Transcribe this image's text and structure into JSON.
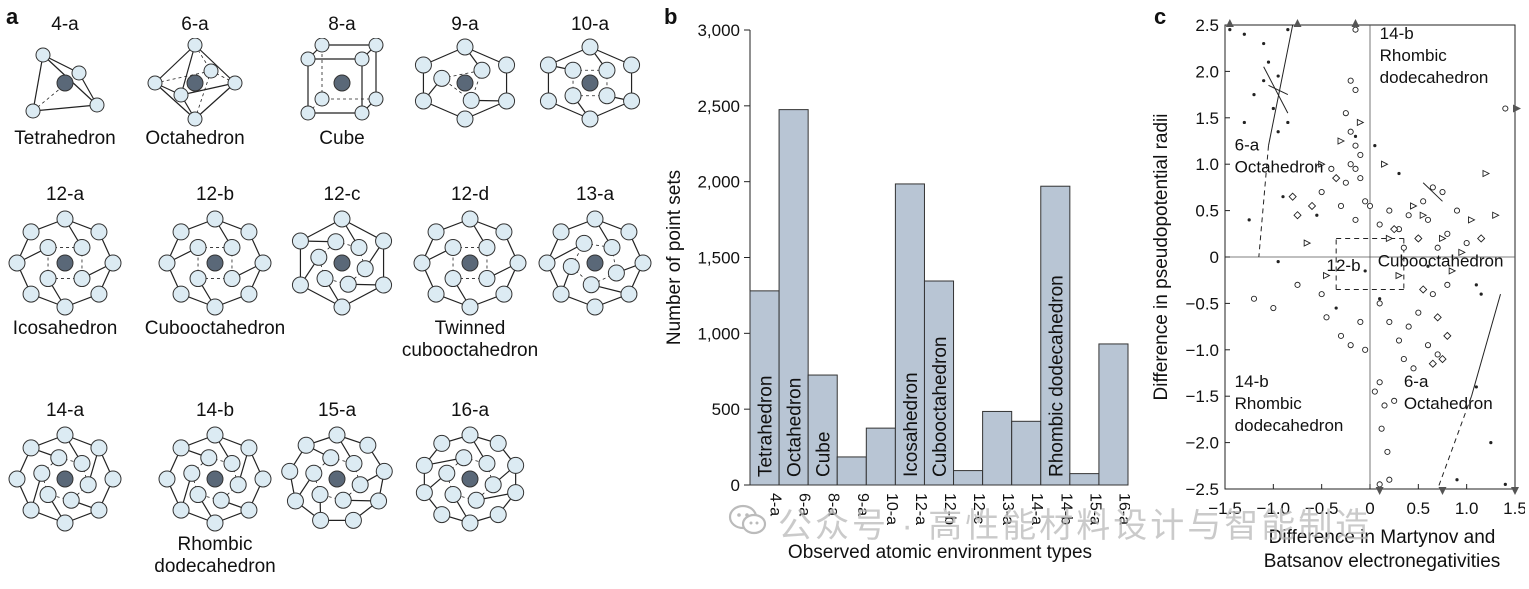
{
  "panel_a": {
    "letter": "a",
    "polyhedra": [
      {
        "code": "4-a",
        "label": "Tetrahedron",
        "shape": "tetra"
      },
      {
        "code": "6-a",
        "label": "Octahedron",
        "shape": "octa"
      },
      {
        "code": "8-a",
        "label": "Cube",
        "shape": "cube"
      },
      {
        "code": "9-a",
        "label": "",
        "shape": "cluster9"
      },
      {
        "code": "10-a",
        "label": "",
        "shape": "cluster10"
      },
      {
        "code": "12-a",
        "label": "Icosahedron",
        "shape": "cluster12"
      },
      {
        "code": "12-b",
        "label": "Cubooctahedron",
        "shape": "cubocta"
      },
      {
        "code": "12-c",
        "label": "",
        "shape": "hexprism"
      },
      {
        "code": "12-d",
        "label": "Twinned\ncubooctahedron",
        "shape": "twinned"
      },
      {
        "code": "13-a",
        "label": "",
        "shape": "cluster13"
      },
      {
        "code": "14-a",
        "label": "",
        "shape": "cluster14a"
      },
      {
        "code": "14-b",
        "label": "Rhombic\ndodecahedron",
        "shape": "rhombic"
      },
      {
        "code": "15-a",
        "label": "",
        "shape": "cluster15"
      },
      {
        "code": "16-a",
        "label": "",
        "shape": "cluster16"
      }
    ]
  },
  "panel_b": {
    "letter": "b"
  },
  "panel_c": {
    "letter": "c"
  },
  "watermark": "公众号 · 高性能材料设计与智能制造",
  "colors": {
    "bar_fill": "#b8c5d4",
    "atom_fill": "#dcebf3",
    "center_atom": "#5a6878"
  },
  "chart_data": [
    {
      "type": "bar",
      "title": "",
      "xlabel": "Observed atomic environment types",
      "ylabel": "Number of point sets",
      "ylim": [
        0,
        3000
      ],
      "yticks": [
        0,
        500,
        1000,
        1500,
        2000,
        2500,
        3000
      ],
      "ytick_labels": [
        "0",
        "500",
        "1,000",
        "1,500",
        "2,000",
        "2,500",
        "3,000"
      ],
      "categories": [
        "4-a",
        "6-a",
        "8-a",
        "9-a",
        "10-a",
        "12-a",
        "12-b",
        "12-c",
        "13-a",
        "14-a",
        "14-b",
        "15-a",
        "16-a"
      ],
      "values": [
        1280,
        2475,
        725,
        185,
        375,
        1985,
        1345,
        95,
        485,
        420,
        1970,
        75,
        930
      ],
      "bar_labels": [
        "Tetrahedron",
        "Octahedron",
        "Cube",
        "",
        "",
        "Icosahedron",
        "Cubooctahedron",
        "",
        "",
        "",
        "Rhombic dodecahedron",
        "",
        ""
      ]
    },
    {
      "type": "scatter",
      "title": "",
      "xlabel": "Difference in Martynov and\nBatsanov electronegativities",
      "ylabel": "Difference in pseudopotential radii",
      "xlim": [
        -1.5,
        1.5
      ],
      "ylim": [
        -2.5,
        2.5
      ],
      "xticks": [
        -1.5,
        -1.0,
        -0.5,
        0,
        0.5,
        1.0,
        1.5
      ],
      "xtick_labels": [
        "−1.5",
        "−1.0",
        "−0.5",
        "0",
        "0.5",
        "1.0",
        "1.5"
      ],
      "yticks": [
        -2.5,
        -2.0,
        -1.5,
        -1.0,
        -0.5,
        0,
        0.5,
        1.0,
        1.5,
        2.0,
        2.5
      ],
      "ytick_labels": [
        "−2.5",
        "−2.0",
        "−1.5",
        "−1.0",
        "−0.5",
        "0",
        "0.5",
        "1.0",
        "1.5",
        "2.0",
        "2.5"
      ],
      "region_labels": [
        {
          "text": "14-b\nRhombic\ndodecahedron",
          "x": 0.1,
          "y": 2.35
        },
        {
          "text": "6-a\nOctahedron",
          "x": -1.4,
          "y": 1.15
        },
        {
          "text": "Cubooctahedron",
          "x": 0.08,
          "y": -0.1
        },
        {
          "text": "12-b",
          "x": -0.45,
          "y": -0.15
        },
        {
          "text": "14-b\nRhombic\ndodecahedron",
          "x": -1.4,
          "y": -1.4
        },
        {
          "text": "6-a\nOctahedron",
          "x": 0.35,
          "y": -1.4
        }
      ],
      "series": [
        {
          "marker": "dot",
          "points": [
            [
              -1.45,
              2.45
            ],
            [
              -1.3,
              2.4
            ],
            [
              -1.1,
              2.3
            ],
            [
              -0.85,
              2.45
            ],
            [
              -0.75,
              2.5
            ],
            [
              -1.05,
              2.1
            ],
            [
              -1.2,
              1.75
            ],
            [
              -1.3,
              1.45
            ],
            [
              -0.95,
              1.95
            ],
            [
              -0.85,
              1.45
            ],
            [
              -1.1,
              1.9
            ],
            [
              -1.0,
              1.6
            ],
            [
              -0.95,
              1.35
            ],
            [
              -1.25,
              0.4
            ],
            [
              -0.9,
              0.65
            ],
            [
              -0.15,
              1.3
            ],
            [
              0.05,
              1.2
            ],
            [
              0.3,
              0.9
            ],
            [
              -0.55,
              0.45
            ],
            [
              0.6,
              -0.1
            ],
            [
              -0.95,
              -0.05
            ],
            [
              -0.35,
              -0.55
            ],
            [
              1.1,
              -0.3
            ],
            [
              1.15,
              -0.4
            ],
            [
              1.1,
              -1.4
            ],
            [
              1.25,
              -2.0
            ],
            [
              0.9,
              -2.4
            ],
            [
              1.4,
              -2.45
            ],
            [
              -0.05,
              -0.15
            ],
            [
              0.1,
              -0.45
            ]
          ]
        },
        {
          "marker": "circle",
          "points": [
            [
              -0.15,
              2.45
            ],
            [
              -0.2,
              1.9
            ],
            [
              -0.15,
              1.8
            ],
            [
              -0.25,
              1.55
            ],
            [
              -0.2,
              1.35
            ],
            [
              -0.15,
              1.2
            ],
            [
              -0.1,
              1.1
            ],
            [
              -0.2,
              1.0
            ],
            [
              -0.15,
              0.95
            ],
            [
              -0.1,
              0.85
            ],
            [
              -0.25,
              0.8
            ],
            [
              -0.05,
              0.6
            ],
            [
              -0.3,
              0.55
            ],
            [
              -0.4,
              0.95
            ],
            [
              -0.5,
              0.7
            ],
            [
              -0.15,
              0.4
            ],
            [
              0.0,
              0.55
            ],
            [
              0.1,
              0.35
            ],
            [
              0.2,
              0.5
            ],
            [
              0.3,
              0.3
            ],
            [
              0.4,
              0.45
            ],
            [
              0.5,
              0.2
            ],
            [
              0.6,
              0.4
            ],
            [
              0.7,
              0.1
            ],
            [
              0.8,
              0.25
            ],
            [
              0.9,
              0.5
            ],
            [
              1.0,
              0.15
            ],
            [
              0.35,
              0.1
            ],
            [
              0.55,
              0.6
            ],
            [
              0.65,
              0.75
            ],
            [
              0.75,
              0.7
            ],
            [
              -0.5,
              -0.4
            ],
            [
              -0.45,
              -0.65
            ],
            [
              -0.3,
              -0.85
            ],
            [
              -0.2,
              -0.95
            ],
            [
              -0.1,
              -0.7
            ],
            [
              -0.05,
              -1.0
            ],
            [
              0.1,
              -0.5
            ],
            [
              0.2,
              -0.7
            ],
            [
              0.3,
              -0.9
            ],
            [
              0.4,
              -0.75
            ],
            [
              0.5,
              -0.6
            ],
            [
              0.6,
              -0.95
            ],
            [
              0.7,
              -1.05
            ],
            [
              0.65,
              -0.4
            ],
            [
              0.8,
              -0.3
            ],
            [
              0.35,
              -1.1
            ],
            [
              0.45,
              -1.2
            ],
            [
              -1.0,
              -0.55
            ],
            [
              -1.2,
              -0.45
            ],
            [
              -0.75,
              -0.3
            ],
            [
              0.1,
              -1.35
            ],
            [
              0.15,
              -1.6
            ],
            [
              0.12,
              -1.85
            ],
            [
              0.18,
              -2.1
            ],
            [
              0.1,
              -2.45
            ],
            [
              0.2,
              -2.4
            ],
            [
              0.05,
              -1.45
            ],
            [
              0.25,
              -1.55
            ],
            [
              1.4,
              1.6
            ]
          ]
        },
        {
          "marker": "triangle",
          "points": [
            [
              -0.5,
              1.0
            ],
            [
              -0.3,
              1.25
            ],
            [
              -0.1,
              1.45
            ],
            [
              0.15,
              1.0
            ],
            [
              0.45,
              0.55
            ],
            [
              0.55,
              0.45
            ],
            [
              0.75,
              0.2
            ],
            [
              0.95,
              0.05
            ],
            [
              1.05,
              0.4
            ],
            [
              1.2,
              0.9
            ],
            [
              0.2,
              0.2
            ],
            [
              0.3,
              -0.2
            ],
            [
              0.85,
              -0.15
            ],
            [
              -0.45,
              -0.2
            ],
            [
              -0.65,
              0.15
            ],
            [
              1.3,
              0.45
            ]
          ]
        },
        {
          "marker": "diamond",
          "points": [
            [
              -0.8,
              0.65
            ],
            [
              -0.75,
              0.45
            ],
            [
              -0.6,
              0.55
            ],
            [
              -0.35,
              0.85
            ],
            [
              0.25,
              0.3
            ],
            [
              0.5,
              0.2
            ],
            [
              1.15,
              0.2
            ],
            [
              0.7,
              -0.65
            ],
            [
              0.8,
              -0.85
            ],
            [
              0.55,
              -0.35
            ],
            [
              0.65,
              -1.15
            ],
            [
              0.75,
              -1.1
            ]
          ]
        }
      ],
      "boundaries": [
        {
          "style": "solid",
          "points": [
            [
              -0.8,
              2.5
            ],
            [
              -1.05,
              1.2
            ]
          ]
        },
        {
          "style": "dashed",
          "points": [
            [
              -1.05,
              1.2
            ],
            [
              -1.15,
              0.0
            ]
          ]
        },
        {
          "style": "solid",
          "points": [
            [
              1.35,
              -0.4
            ],
            [
              1.05,
              -1.5
            ]
          ]
        },
        {
          "style": "dashed",
          "points": [
            [
              1.05,
              -1.5
            ],
            [
              0.7,
              -2.5
            ]
          ]
        },
        {
          "style": "dashed",
          "points": [
            [
              -0.35,
              0.2
            ],
            [
              0.35,
              0.2
            ]
          ]
        },
        {
          "style": "dashed",
          "points": [
            [
              0.35,
              0.2
            ],
            [
              0.35,
              -0.35
            ]
          ]
        },
        {
          "style": "dashed",
          "points": [
            [
              0.35,
              -0.35
            ],
            [
              -0.35,
              -0.35
            ]
          ]
        },
        {
          "style": "dashed",
          "points": [
            [
              -0.35,
              -0.35
            ],
            [
              -0.35,
              0.2
            ]
          ]
        },
        {
          "style": "solid",
          "points": [
            [
              -1.1,
              2.05
            ],
            [
              -0.85,
              1.55
            ]
          ]
        },
        {
          "style": "solid",
          "points": [
            [
              -1.05,
              1.85
            ],
            [
              -0.85,
              1.75
            ]
          ]
        },
        {
          "style": "solid",
          "points": [
            [
              0.55,
              0.8
            ],
            [
              0.75,
              0.6
            ]
          ]
        }
      ],
      "edge_arrows": [
        [
          -1.45,
          2.5
        ],
        [
          -0.75,
          2.5
        ],
        [
          -0.15,
          2.5
        ],
        [
          1.5,
          1.6
        ],
        [
          0.1,
          -2.5
        ],
        [
          0.75,
          -2.5
        ],
        [
          1.5,
          -2.5
        ]
      ]
    }
  ]
}
